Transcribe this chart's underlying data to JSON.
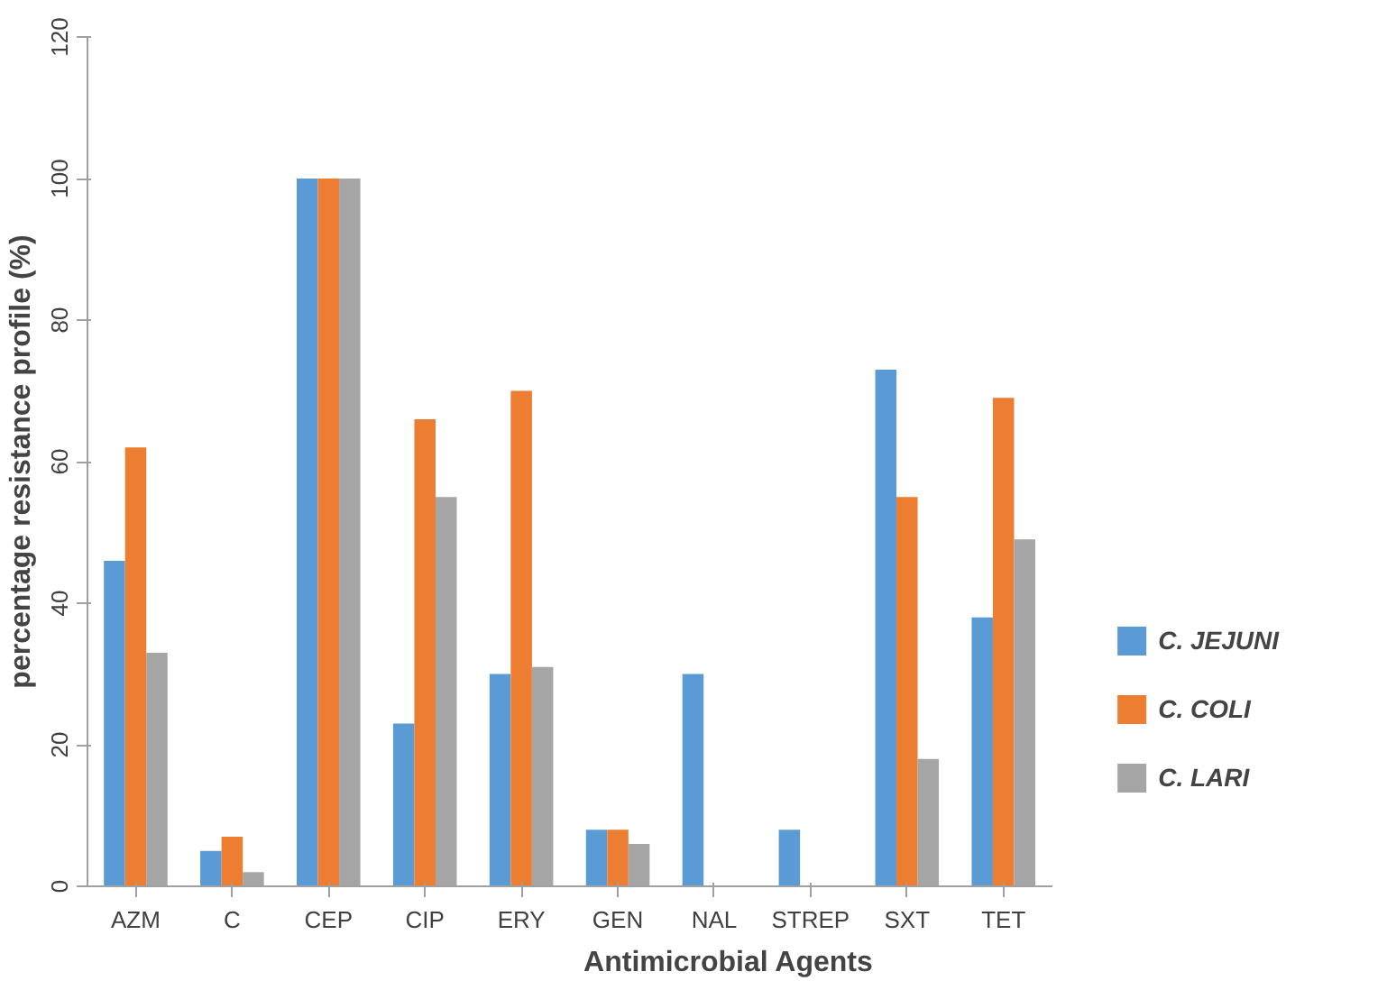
{
  "chart_data": {
    "type": "bar",
    "xlabel": "Antimicrobial Agents",
    "ylabel": "percentage resistance profile (%)",
    "categories": [
      "AZM",
      "C",
      "CEP",
      "CIP",
      "ERY",
      "GEN",
      "NAL",
      "STREP",
      "SXT",
      "TET"
    ],
    "series": [
      {
        "name": "C. JEJUNI",
        "color": "#5b9bd5",
        "values": [
          46,
          5,
          100,
          23,
          30,
          8,
          30,
          8,
          73,
          38
        ]
      },
      {
        "name": "C. COLI",
        "color": "#ed7d31",
        "values": [
          62,
          7,
          100,
          66,
          70,
          8,
          0,
          0,
          55,
          69
        ]
      },
      {
        "name": "C. LARI",
        "color": "#a5a5a5",
        "values": [
          33,
          2,
          100,
          55,
          31,
          6,
          0,
          0,
          18,
          49
        ]
      }
    ],
    "ylim": [
      0,
      120
    ],
    "yticks": [
      0,
      20,
      40,
      60,
      80,
      100,
      120
    ],
    "grid": false,
    "legend": "right"
  }
}
